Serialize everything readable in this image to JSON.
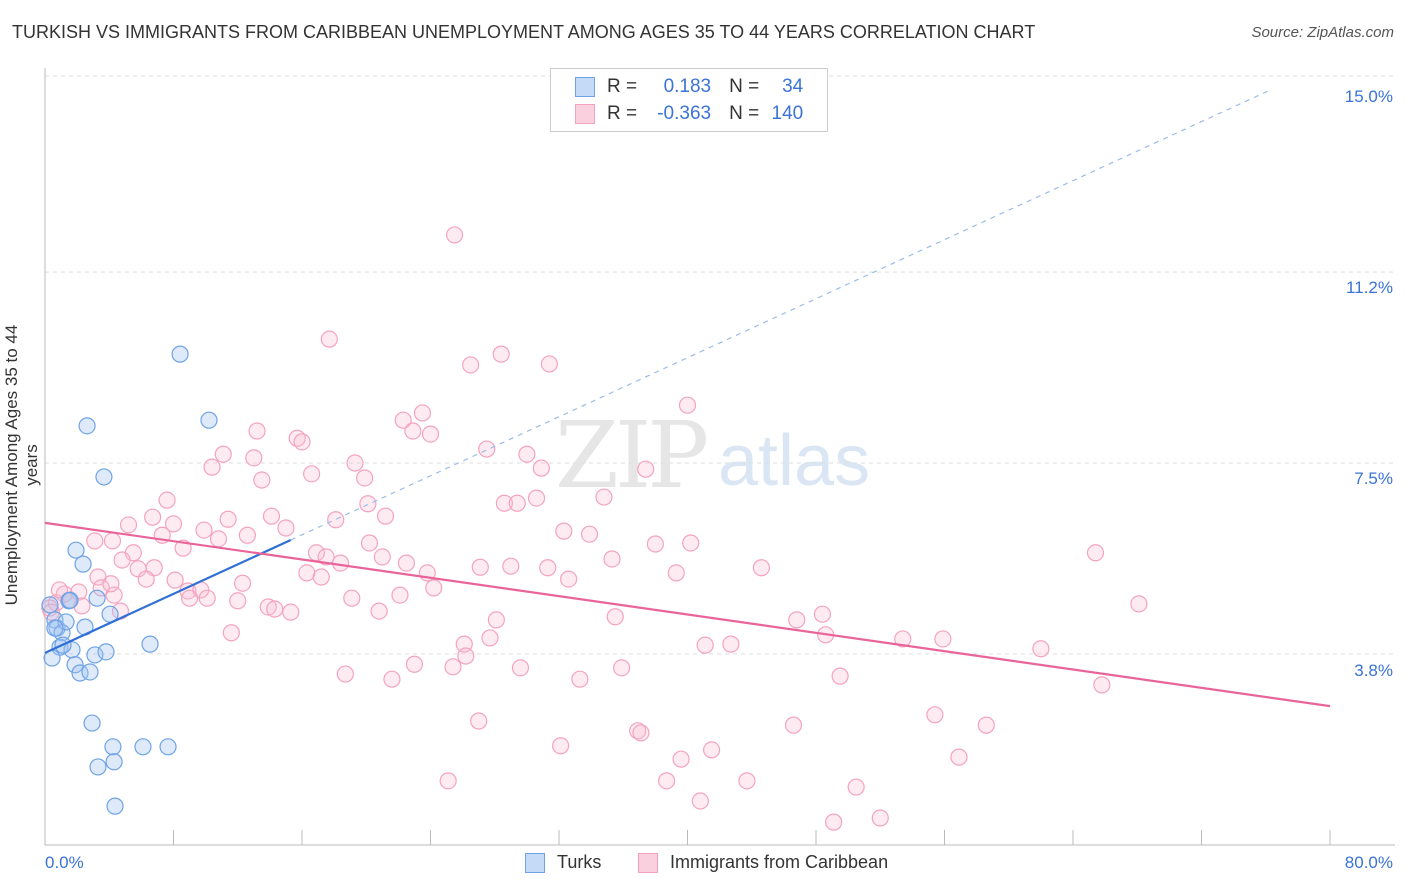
{
  "title": "TURKISH VS IMMIGRANTS FROM CARIBBEAN UNEMPLOYMENT AMONG AGES 35 TO 44 YEARS CORRELATION CHART",
  "source": "Source: ZipAtlas.com",
  "watermark": "ZIPatlas",
  "watermark_a": "ZIP",
  "watermark_b": "atlas",
  "legend": {
    "r_label": "R =",
    "n_label": "N =",
    "turks": {
      "r": "0.183",
      "n": "34"
    },
    "caribbean": {
      "r": "-0.363",
      "n": "140"
    }
  },
  "chart_data": {
    "type": "scatter",
    "title": "TURKISH VS IMMIGRANTS FROM CARIBBEAN UNEMPLOYMENT AMONG AGES 35 TO 44 YEARS CORRELATION CHART",
    "xlabel": "",
    "ylabel": "Unemployment Among Ages 35 to 44 years",
    "xlim": [
      0,
      80
    ],
    "ylim": [
      0,
      15
    ],
    "x_tick_labels": [
      "0.0%",
      "80.0%"
    ],
    "y_ticks": [
      3.8,
      7.5,
      11.2,
      15.0
    ],
    "y_tick_labels": [
      "3.8%",
      "7.5%",
      "11.2%",
      "15.0%"
    ],
    "grid": true,
    "legend_position": "bottom",
    "colors": {
      "turks": "#6fa3e6",
      "caribbean": "#f4a3bf",
      "turks_line": "#2f6fd6",
      "caribbean_line": "#e8649a",
      "tick": "#3b73d6"
    },
    "series": [
      {
        "name": "Turks",
        "trend": {
          "intercept": 3.82,
          "slope": 0.143,
          "solid_to": 15.3,
          "dashed_to": 76.3
        },
        "points": [
          [
            8.41,
            9.61
          ],
          [
            10.21,
            8.33
          ],
          [
            2.62,
            8.22
          ],
          [
            3.67,
            7.23
          ],
          [
            1.93,
            5.81
          ],
          [
            2.37,
            5.54
          ],
          [
            3.24,
            4.88
          ],
          [
            1.49,
            4.83
          ],
          [
            0.31,
            4.75
          ],
          [
            0.62,
            4.46
          ],
          [
            0.75,
            4.3
          ],
          [
            1.06,
            4.21
          ],
          [
            2.49,
            4.32
          ],
          [
            4.05,
            4.57
          ],
          [
            1.31,
            4.42
          ],
          [
            6.54,
            3.99
          ],
          [
            0.93,
            3.93
          ],
          [
            1.68,
            3.88
          ],
          [
            3.11,
            3.78
          ],
          [
            3.8,
            3.84
          ],
          [
            0.44,
            3.72
          ],
          [
            1.87,
            3.59
          ],
          [
            2.18,
            3.43
          ],
          [
            2.8,
            3.45
          ],
          [
            2.93,
            2.46
          ],
          [
            4.23,
            2.0
          ],
          [
            6.1,
            2.0
          ],
          [
            7.66,
            2.0
          ],
          [
            3.3,
            1.61
          ],
          [
            4.3,
            1.71
          ],
          [
            4.36,
            0.85
          ],
          [
            0.62,
            4.3
          ],
          [
            1.56,
            4.84
          ],
          [
            1.12,
            3.97
          ]
        ]
      },
      {
        "name": "Immigrants from Caribbean",
        "trend": {
          "intercept": 6.34,
          "slope": -0.0444,
          "solid_to": 80
        },
        "points": [
          [
            25.5,
            11.92
          ],
          [
            17.7,
            9.9
          ],
          [
            28.4,
            9.61
          ],
          [
            26.5,
            9.4
          ],
          [
            31.4,
            9.42
          ],
          [
            40.0,
            8.62
          ],
          [
            23.5,
            8.47
          ],
          [
            22.3,
            8.33
          ],
          [
            22.9,
            8.12
          ],
          [
            24.0,
            8.06
          ],
          [
            13.2,
            8.12
          ],
          [
            15.7,
            7.98
          ],
          [
            16.0,
            7.91
          ],
          [
            27.5,
            7.77
          ],
          [
            11.1,
            7.67
          ],
          [
            13.0,
            7.6
          ],
          [
            19.3,
            7.5
          ],
          [
            30.0,
            7.67
          ],
          [
            10.4,
            7.42
          ],
          [
            30.9,
            7.4
          ],
          [
            37.4,
            7.38
          ],
          [
            16.6,
            7.29
          ],
          [
            13.5,
            7.17
          ],
          [
            19.9,
            7.21
          ],
          [
            7.6,
            6.78
          ],
          [
            28.6,
            6.72
          ],
          [
            29.4,
            6.72
          ],
          [
            30.6,
            6.82
          ],
          [
            34.8,
            6.84
          ],
          [
            20.1,
            6.71
          ],
          [
            21.2,
            6.47
          ],
          [
            18.1,
            6.4
          ],
          [
            14.1,
            6.47
          ],
          [
            6.7,
            6.45
          ],
          [
            11.4,
            6.41
          ],
          [
            8.0,
            6.32
          ],
          [
            5.2,
            6.3
          ],
          [
            15.0,
            6.24
          ],
          [
            9.9,
            6.2
          ],
          [
            7.3,
            6.1
          ],
          [
            12.6,
            6.1
          ],
          [
            32.3,
            6.18
          ],
          [
            33.9,
            6.12
          ],
          [
            4.2,
            5.99
          ],
          [
            3.1,
            5.99
          ],
          [
            20.2,
            5.95
          ],
          [
            8.6,
            5.85
          ],
          [
            10.8,
            6.03
          ],
          [
            38.0,
            5.93
          ],
          [
            40.2,
            5.95
          ],
          [
            5.5,
            5.76
          ],
          [
            4.8,
            5.62
          ],
          [
            16.9,
            5.76
          ],
          [
            17.5,
            5.68
          ],
          [
            21.0,
            5.68
          ],
          [
            22.5,
            5.56
          ],
          [
            35.3,
            5.64
          ],
          [
            65.4,
            5.76
          ],
          [
            18.4,
            5.56
          ],
          [
            29.0,
            5.5
          ],
          [
            31.3,
            5.47
          ],
          [
            5.8,
            5.45
          ],
          [
            6.8,
            5.47
          ],
          [
            6.3,
            5.25
          ],
          [
            3.3,
            5.29
          ],
          [
            16.3,
            5.37
          ],
          [
            17.2,
            5.29
          ],
          [
            23.8,
            5.37
          ],
          [
            27.1,
            5.48
          ],
          [
            32.6,
            5.25
          ],
          [
            39.3,
            5.37
          ],
          [
            44.6,
            5.47
          ],
          [
            8.1,
            5.23
          ],
          [
            12.3,
            5.17
          ],
          [
            3.5,
            5.08
          ],
          [
            24.2,
            5.08
          ],
          [
            8.9,
            5.02
          ],
          [
            9.7,
            5.04
          ],
          [
            4.3,
            4.94
          ],
          [
            9.0,
            4.88
          ],
          [
            10.1,
            4.88
          ],
          [
            12.0,
            4.83
          ],
          [
            19.1,
            4.88
          ],
          [
            2.1,
            5.0
          ],
          [
            1.2,
            4.96
          ],
          [
            0.7,
            4.79
          ],
          [
            0.3,
            4.69
          ],
          [
            2.3,
            4.73
          ],
          [
            4.7,
            4.63
          ],
          [
            13.9,
            4.71
          ],
          [
            14.3,
            4.67
          ],
          [
            15.3,
            4.61
          ],
          [
            20.8,
            4.63
          ],
          [
            28.1,
            4.46
          ],
          [
            35.5,
            4.52
          ],
          [
            48.4,
            4.57
          ],
          [
            46.8,
            4.46
          ],
          [
            68.1,
            4.77
          ],
          [
            11.6,
            4.21
          ],
          [
            48.6,
            4.17
          ],
          [
            53.4,
            4.09
          ],
          [
            55.9,
            4.09
          ],
          [
            26.1,
            3.99
          ],
          [
            27.7,
            4.11
          ],
          [
            41.1,
            3.97
          ],
          [
            42.7,
            3.99
          ],
          [
            62.0,
            3.9
          ],
          [
            26.2,
            3.76
          ],
          [
            23.0,
            3.6
          ],
          [
            25.4,
            3.55
          ],
          [
            29.6,
            3.53
          ],
          [
            35.9,
            3.53
          ],
          [
            18.7,
            3.41
          ],
          [
            21.6,
            3.31
          ],
          [
            33.3,
            3.31
          ],
          [
            49.5,
            3.37
          ],
          [
            65.8,
            3.2
          ],
          [
            27.0,
            2.5
          ],
          [
            55.4,
            2.62
          ],
          [
            58.6,
            2.42
          ],
          [
            46.6,
            2.42
          ],
          [
            36.9,
            2.31
          ],
          [
            37.1,
            2.27
          ],
          [
            32.1,
            2.02
          ],
          [
            41.5,
            1.94
          ],
          [
            39.6,
            1.76
          ],
          [
            56.9,
            1.8
          ],
          [
            25.1,
            1.34
          ],
          [
            38.7,
            1.34
          ],
          [
            43.7,
            1.34
          ],
          [
            50.5,
            1.22
          ],
          [
            40.8,
            0.95
          ],
          [
            52.0,
            0.62
          ],
          [
            49.1,
            0.54
          ],
          [
            22.1,
            4.94
          ],
          [
            4.1,
            5.16
          ],
          [
            1.5,
            4.84
          ],
          [
            0.9,
            5.04
          ],
          [
            0.4,
            4.61
          ]
        ]
      }
    ]
  }
}
